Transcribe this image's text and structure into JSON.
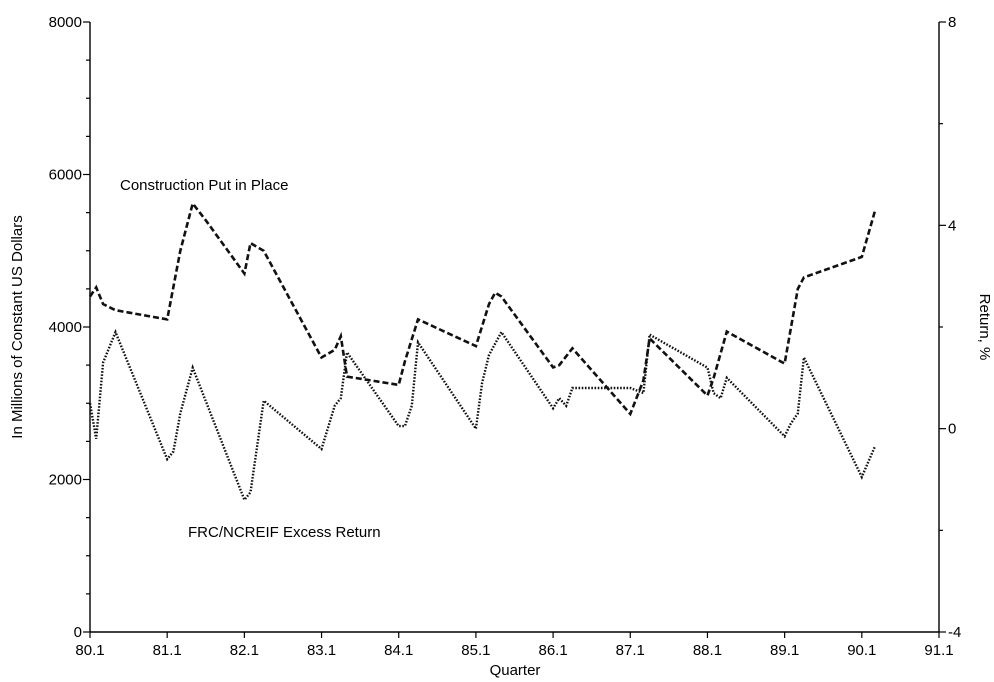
{
  "chart_data": {
    "type": "line",
    "xlabel": "Quarter",
    "ylabel_left": "In Millions of Constant US Dollars",
    "ylabel_right": "Return, %",
    "x_ticks": [
      "80.1",
      "81.1",
      "82.1",
      "83.1",
      "84.1",
      "85.1",
      "86.1",
      "87.1",
      "88.1",
      "89.1",
      "90.1",
      "91.1"
    ],
    "x_range": [
      80.0,
      91.0
    ],
    "y_left_range": [
      0,
      8000
    ],
    "y_left_ticks": [
      "0",
      "2000",
      "4000",
      "6000",
      "8000"
    ],
    "y_right_range": [
      -4,
      8
    ],
    "y_right_ticks": [
      "-4",
      "0",
      "4",
      "8"
    ],
    "grid": false,
    "annotations": [
      "Construction Put in Place",
      "FRC/NCREIF Excess Return"
    ],
    "series": [
      {
        "axis": "left",
        "style": "dashed",
        "x": [
          80.0,
          80.08,
          80.17,
          80.33,
          81.0,
          81.17,
          81.33,
          81.5,
          82.0,
          82.08,
          82.25,
          83.0,
          83.17,
          83.25,
          83.33,
          84.0,
          84.08,
          84.25,
          85.0,
          85.17,
          85.25,
          85.33,
          86.0,
          86.08,
          86.25,
          87.0,
          87.17,
          87.25,
          88.0,
          88.08,
          88.25,
          89.0,
          89.17,
          89.25,
          90.0,
          90.17
        ],
        "y": [
          4400,
          4520,
          4300,
          4220,
          4100,
          5000,
          5620,
          5400,
          4700,
          5100,
          5000,
          3600,
          3700,
          3880,
          3350,
          3240,
          3550,
          4100,
          3750,
          4300,
          4450,
          4400,
          3470,
          3500,
          3720,
          2860,
          3300,
          3850,
          3100,
          3330,
          3940,
          3520,
          4500,
          4650,
          4920,
          5520
        ]
      },
      {
        "axis": "right",
        "style": "dotted",
        "x": [
          80.0,
          80.08,
          80.17,
          80.33,
          81.0,
          81.08,
          81.17,
          81.33,
          82.0,
          82.08,
          82.25,
          83.0,
          83.17,
          83.25,
          83.33,
          84.0,
          84.08,
          84.17,
          84.25,
          85.0,
          85.08,
          85.17,
          85.33,
          86.0,
          86.08,
          86.17,
          86.25,
          87.0,
          87.17,
          87.25,
          88.0,
          88.08,
          88.17,
          88.25,
          89.0,
          89.08,
          89.17,
          89.25,
          90.0,
          90.17
        ],
        "y": [
          0.5,
          -0.2,
          1.3,
          1.9,
          -0.6,
          -0.45,
          0.3,
          1.2,
          -1.4,
          -1.25,
          0.55,
          -0.4,
          0.45,
          0.6,
          1.5,
          0.05,
          0.05,
          0.45,
          1.7,
          0.0,
          0.9,
          1.45,
          1.9,
          0.4,
          0.6,
          0.45,
          0.8,
          0.8,
          0.7,
          1.85,
          1.2,
          0.7,
          0.6,
          1.0,
          -0.15,
          0.1,
          0.3,
          1.4,
          -0.95,
          -0.35
        ]
      }
    ]
  }
}
